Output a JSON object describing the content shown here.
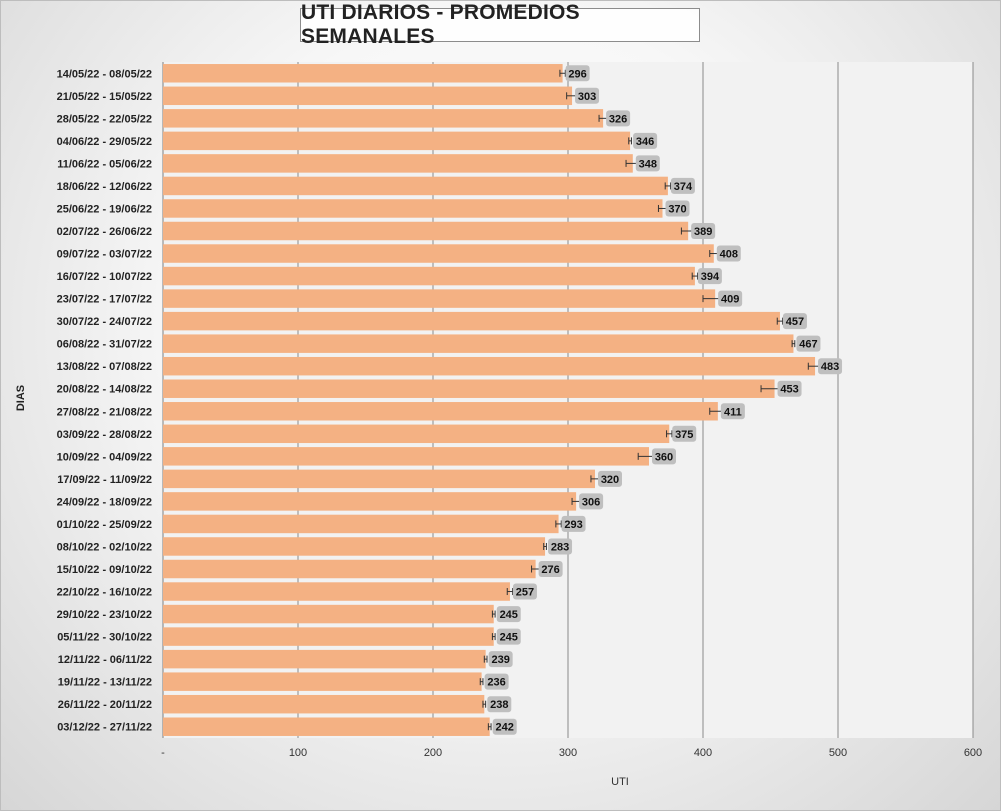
{
  "chart_data": {
    "type": "bar",
    "orientation": "horizontal",
    "title": "UTI DIARIOS - PROMEDIOS SEMANALES",
    "xlabel": "UTI",
    "ylabel": "DIAS",
    "xlim": [
      0,
      600
    ],
    "xticks": [
      "-",
      "100",
      "200",
      "300",
      "400",
      "500",
      "600"
    ],
    "grid": true,
    "bar_color": "#f4b183",
    "label_bg": "#bfbfbf",
    "plot_bg": "#f2f2f2",
    "categories": [
      "14/05/22 - 08/05/22",
      "21/05/22 - 15/05/22",
      "28/05/22 - 22/05/22",
      "04/06/22 - 29/05/22",
      "11/06/22 - 05/06/22",
      "18/06/22 - 12/06/22",
      "25/06/22 - 19/06/22",
      "02/07/22 - 26/06/22",
      "09/07/22 - 03/07/22",
      "16/07/22 - 10/07/22",
      "23/07/22 - 17/07/22",
      "30/07/22 - 24/07/22",
      "06/08/22 - 31/07/22",
      "13/08/22 - 07/08/22",
      "20/08/22 - 14/08/22",
      "27/08/22 - 21/08/22",
      "03/09/22 - 28/08/22",
      "10/09/22 - 04/09/22",
      "17/09/22 - 11/09/22",
      "24/09/22 - 18/09/22",
      "01/10/22 - 25/09/22",
      "08/10/22 - 02/10/22",
      "15/10/22 - 09/10/22",
      "22/10/22 - 16/10/22",
      "29/10/22 - 23/10/22",
      "05/11/22 - 30/10/22",
      "12/11/22 - 06/11/22",
      "19/11/22 - 13/11/22",
      "26/11/22 - 20/11/22",
      "03/12/22 - 27/11/22"
    ],
    "values": [
      296,
      303,
      326,
      346,
      348,
      374,
      370,
      389,
      408,
      394,
      409,
      457,
      467,
      483,
      453,
      411,
      375,
      360,
      320,
      306,
      293,
      283,
      276,
      257,
      245,
      245,
      239,
      236,
      238,
      242
    ],
    "errors": [
      2,
      4,
      3,
      1,
      5,
      2,
      3,
      5,
      3,
      2,
      9,
      2,
      1,
      5,
      10,
      6,
      2,
      8,
      3,
      3,
      2,
      1,
      3,
      2,
      1,
      1,
      1,
      1,
      1,
      1
    ]
  }
}
